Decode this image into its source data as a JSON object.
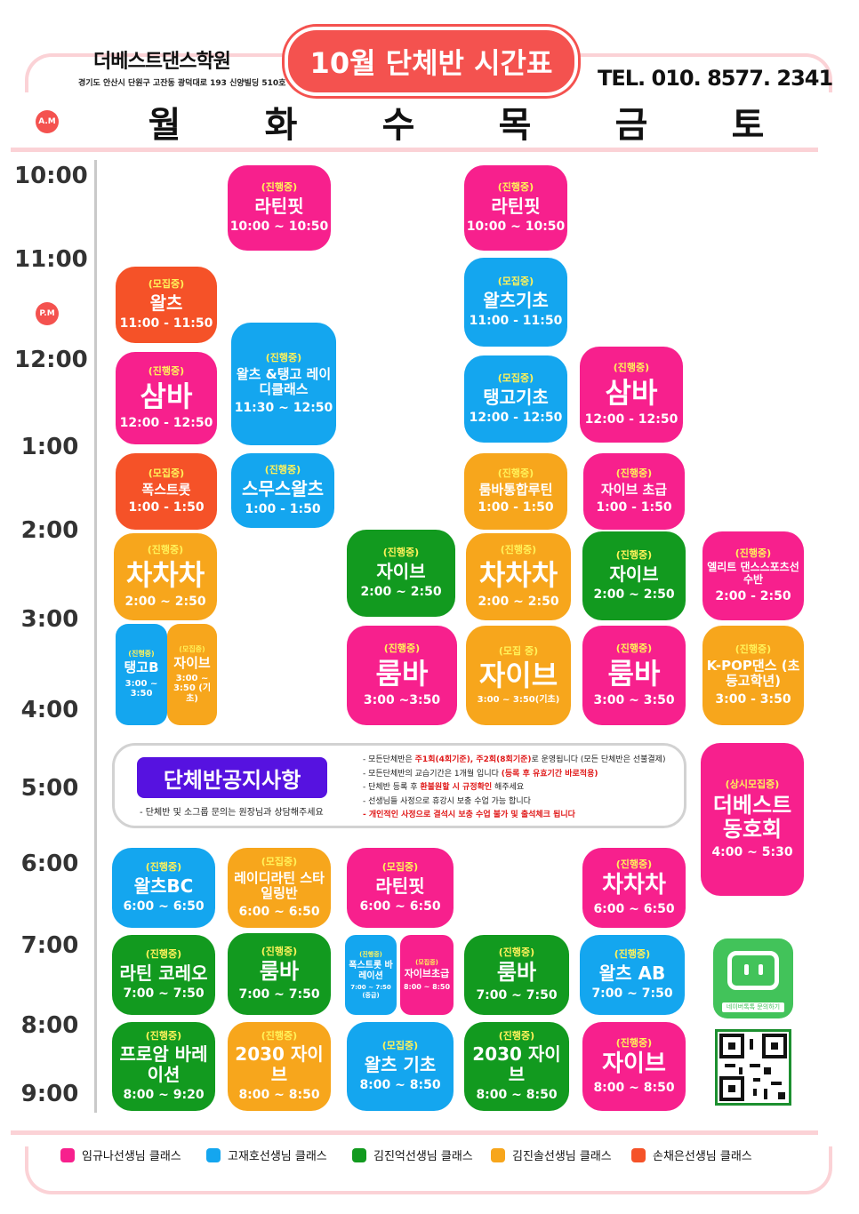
{
  "header": {
    "academy_name": "더베스트댄스학원",
    "address": "경기도 안산시 단원구 고잔동 광덕대로 193 신양빌딩 510호",
    "title": "10월 단체반 시간표",
    "tel": "TEL. 010. 8577. 2341",
    "am_label": "A.M",
    "pm_label": "P.M"
  },
  "days": [
    "월",
    "화",
    "수",
    "목",
    "금",
    "토"
  ],
  "times": [
    "10:00",
    "11:00",
    "12:00",
    "1:00",
    "2:00",
    "3:00",
    "4:00",
    "5:00",
    "6:00",
    "7:00",
    "8:00",
    "9:00"
  ],
  "classes": [
    {
      "status": "(진행중)",
      "name": "라틴핏",
      "time": "10:00 ~ 10:50"
    },
    {
      "status": "(진행중)",
      "name": "라틴핏",
      "time": "10:00 ~ 10:50"
    },
    {
      "status": "(모집중)",
      "name": "왈츠",
      "time": "11:00 - 11:50"
    },
    {
      "status": "(모집중)",
      "name": "왈츠기초",
      "time": "11:00 - 11:50"
    },
    {
      "status": "(진행중)",
      "name": "왈츠 &탱고 레이디클래스",
      "time": "11:30 ~ 12:50"
    },
    {
      "status": "(진행중)",
      "name": "삼바",
      "time": "12:00 - 12:50"
    },
    {
      "status": "(모집중)",
      "name": "탱고기초",
      "time": "12:00 - 12:50"
    },
    {
      "status": "(진행중)",
      "name": "삼바",
      "time": "12:00 - 12:50"
    },
    {
      "status": "(모집중)",
      "name": "폭스트롯",
      "time": "1:00 - 1:50"
    },
    {
      "status": "(진행중)",
      "name": "스무스왈츠",
      "time": "1:00 - 1:50"
    },
    {
      "status": "(진행중)",
      "name": "룸바통합루틴",
      "time": "1:00 - 1:50"
    },
    {
      "status": "(진행중)",
      "name": "자이브 초급",
      "time": "1:00 - 1:50"
    },
    {
      "status": "(진행중)",
      "name": "차차차",
      "time": "2:00 ~ 2:50"
    },
    {
      "status": "(진행중)",
      "name": "자이브",
      "time": "2:00 ~ 2:50"
    },
    {
      "status": "(진행중)",
      "name": "차차차",
      "time": "2:00 ~ 2:50"
    },
    {
      "status": "(진행중)",
      "name": "자이브",
      "time": "2:00 ~ 2:50"
    },
    {
      "status": "(진행중)",
      "name": "엘리트 댄스스포츠선수반",
      "time": "2:00 - 2:50"
    },
    {
      "status": "(진행중)",
      "name": "탱고B",
      "time": "3:00 ~ 3:50"
    },
    {
      "status": "(모집중)",
      "name": "자이브",
      "time": "3:00 ~ 3:50 (기초)"
    },
    {
      "status": "(진행중)",
      "name": "룸바",
      "time": "3:00 ~3:50"
    },
    {
      "status": "(모집 중)",
      "name": "자이브",
      "time": "3:00 ~ 3:50(기초)"
    },
    {
      "status": "(진행중)",
      "name": "룸바",
      "time": "3:00 ~ 3:50"
    },
    {
      "status": "(진행중)",
      "name": "K-POP댄스 (초등고학년)",
      "time": "3:00 - 3:50"
    },
    {
      "status": "(상시모집중)",
      "name": "더베스트 동호회",
      "time": "4:00 ~ 5:30"
    },
    {
      "status": "(진행중)",
      "name": "왈츠BC",
      "time": "6:00 ~ 6:50"
    },
    {
      "status": "(모집중)",
      "name": "레이디라틴 스타일링반",
      "time": "6:00 ~ 6:50"
    },
    {
      "status": "(모집중)",
      "name": "라틴핏",
      "time": "6:00 ~ 6:50"
    },
    {
      "status": "(진행중)",
      "name": "차차차",
      "time": "6:00 ~ 6:50"
    },
    {
      "status": "(진행중)",
      "name": "라틴 코레오",
      "time": "7:00 ~ 7:50"
    },
    {
      "status": "(진행중)",
      "name": "룸바",
      "time": "7:00 ~ 7:50"
    },
    {
      "status": "(진행중)",
      "name": "폭스트롯 바레이션",
      "time": "7:00 ~ 7:50 (중급)"
    },
    {
      "status": "(모집중)",
      "name": "자이브초급",
      "time": "8:00 ~ 8:50"
    },
    {
      "status": "(진행중)",
      "name": "룸바",
      "time": "7:00 ~ 7:50"
    },
    {
      "status": "(진행중)",
      "name": "왈츠 AB",
      "time": "7:00 ~ 7:50"
    },
    {
      "status": "(진행중)",
      "name": "프로암 바레이션",
      "time": "8:00 ~ 9:20"
    },
    {
      "status": "(진행중)",
      "name": "2030 자이브",
      "time": "8:00 ~ 8:50"
    },
    {
      "status": "(모집중)",
      "name": "왈츠 기초",
      "time": "8:00 ~ 8:50"
    },
    {
      "status": "(진행중)",
      "name": "2030 자이브",
      "time": "8:00 ~ 8:50"
    },
    {
      "status": "(진행중)",
      "name": "자이브",
      "time": "8:00 ~ 8:50"
    }
  ],
  "notice": {
    "title": "단체반공지사항",
    "subtitle": "- 단체반 및 소그룹 문의는 원장님과 상담해주세요",
    "line1_a": "- 모든단체반은 ",
    "line1_b": "주1회(4회기준), 주2회(8회기준)",
    "line1_c": "로 운영됩니다 (모든 단체반은 선불결제)",
    "line2_a": "- 모든단체반의 교습기간은 1개월 입니다 ",
    "line2_b": "(등록 후 유효기간 바로적용)",
    "line3_a": "- 단체반 등록 후 ",
    "line3_b": "환불원할 시 규정확인",
    "line3_c": " 해주세요",
    "line4": "- 선생님들 사정으로 휴강시 보충 수업 가능 합니다",
    "line5": "- 개인적인 사정으로 결석시 보충 수업 불가 및 출석체크 됩니다"
  },
  "kakao_label": "네이버톡톡 문의하기",
  "legend": [
    {
      "label": "임규나선생님 클래스",
      "color": "#f7208d"
    },
    {
      "label": "고재호선생님 클래스",
      "color": "#14a6ef"
    },
    {
      "label": "김진억선생님 클래스",
      "color": "#129a1f"
    },
    {
      "label": "김진솔선생님 클래스",
      "color": "#f7a61c"
    },
    {
      "label": "손채은선생님 클래스",
      "color": "#f55228"
    }
  ],
  "colors": {
    "pink": "#f7208d",
    "blue": "#14a6ef",
    "green": "#129a1f",
    "orange": "#f7a61c",
    "red": "#f55228",
    "title": "#f4524f",
    "notice": "#5612e0"
  }
}
